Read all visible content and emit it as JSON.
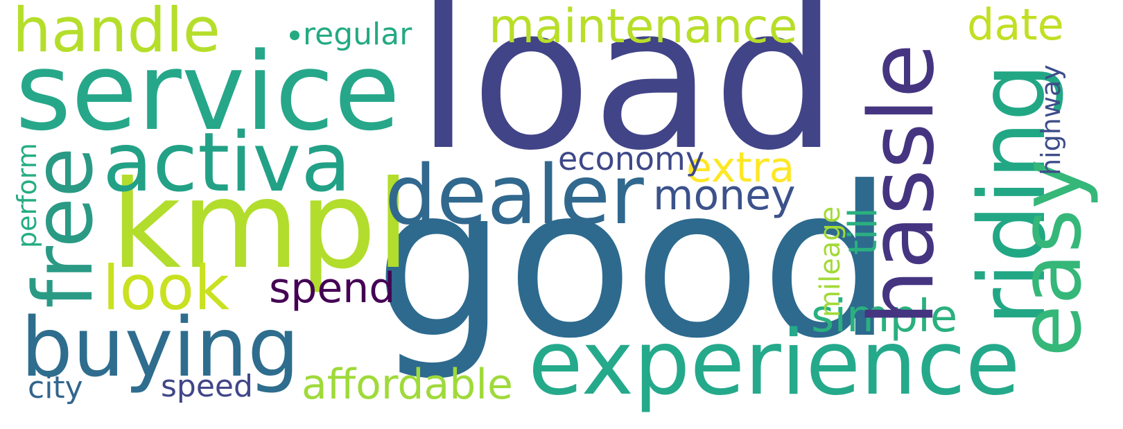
{
  "words": {
    "load": {
      "text": "load",
      "color": "#414487"
    },
    "good": {
      "text": "good",
      "color": "#2d6a8e"
    },
    "service": {
      "text": "service",
      "color": "#26a78a"
    },
    "kmpl": {
      "text": "kmpl",
      "color": "#b2dd2c"
    },
    "activa": {
      "text": "activa",
      "color": "#22a186"
    },
    "hassle": {
      "text": "hassle",
      "color": "#453581"
    },
    "riding": {
      "text": "riding",
      "color": "#22a785"
    },
    "easy": {
      "text": "easy",
      "color": "#35b779"
    },
    "dealer": {
      "text": "dealer",
      "color": "#31688e"
    },
    "experience": {
      "text": "experience",
      "color": "#25a98b"
    },
    "free": {
      "text": "free",
      "color": "#2a9a85"
    },
    "buying": {
      "text": "buying",
      "color": "#2e6d8e"
    },
    "handle": {
      "text": "handle",
      "color": "#b5de2b"
    },
    "maintenance": {
      "text": "maintenance",
      "color": "#b8de29"
    },
    "look": {
      "text": "look",
      "color": "#c9e120"
    },
    "simple": {
      "text": "simple",
      "color": "#2ab07f"
    },
    "date": {
      "text": "date",
      "color": "#c2df23"
    },
    "affordable": {
      "text": "affordable",
      "color": "#9fda3a"
    },
    "money": {
      "text": "money",
      "color": "#3b528b"
    },
    "spend": {
      "text": "spend",
      "color": "#440154"
    },
    "extra": {
      "text": "extra",
      "color": "#fde725"
    },
    "economy": {
      "text": "economy",
      "color": "#3e4989"
    },
    "till": {
      "text": "till",
      "color": "#2ab07f"
    },
    "mileage": {
      "text": "mileage",
      "color": "#a2da37"
    },
    "highway": {
      "text": "highway",
      "color": "#3d4d8a"
    },
    "perform": {
      "text": "perform",
      "color": "#25ac82"
    },
    "regular": {
      "text": "regular",
      "color": "#24aa83"
    },
    "city": {
      "text": "city",
      "color": "#32658e"
    },
    "speed": {
      "text": "speed",
      "color": "#404688"
    }
  },
  "dot_color": "#24aa83"
}
